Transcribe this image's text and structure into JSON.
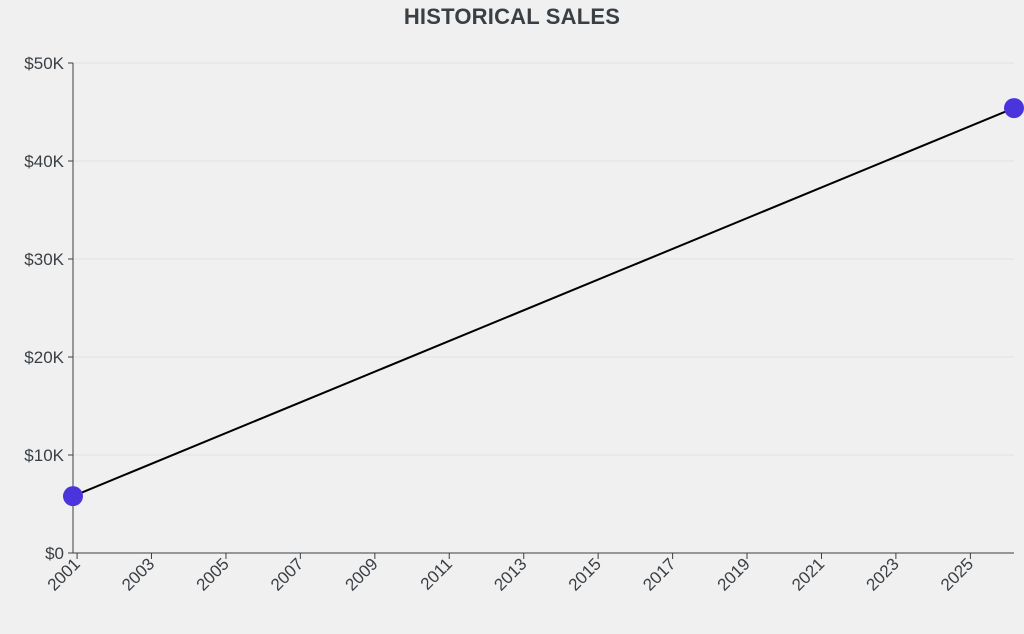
{
  "chart_data": {
    "type": "line",
    "title": "HISTORICAL SALES",
    "xlabel": "",
    "ylabel": "",
    "x_range": [
      "2000-11-22",
      "2026-03-05"
    ],
    "ylim": [
      0,
      50000
    ],
    "x_ticks": [
      "2001",
      "2003",
      "2005",
      "2007",
      "2009",
      "2011",
      "2013",
      "2015",
      "2017",
      "2019",
      "2021",
      "2023",
      "2025"
    ],
    "y_ticks": [
      "$0",
      "$10K",
      "$20K",
      "$30K",
      "$40K",
      "$50K"
    ],
    "y_tick_values": [
      0,
      10000,
      20000,
      30000,
      40000,
      50000
    ],
    "grid": true,
    "series": [
      {
        "points": [
          {
            "x": "2000-11-22",
            "y": 5800
          },
          {
            "x": "2026-03-05",
            "y": 45400
          }
        ]
      }
    ],
    "colors": {
      "marker": "#4a35dd",
      "line": "#000000",
      "grid": "#e2e2e2",
      "axis": "#3a3f44"
    }
  }
}
